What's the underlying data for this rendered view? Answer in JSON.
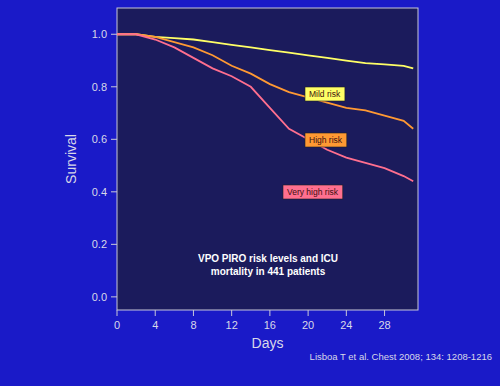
{
  "chart_data": {
    "type": "line",
    "y_label": "Survival",
    "x_label": "Days",
    "annotation": [
      "VPO PIRO risk levels and ICU",
      "mortality in 441 patients"
    ],
    "source": "Lisboa T et al. Chest 2008; 134: 1208-1216",
    "x": [
      0,
      2,
      4,
      6,
      8,
      10,
      12,
      14,
      16,
      18,
      20,
      22,
      24,
      26,
      28,
      30,
      31
    ],
    "series": [
      {
        "name": "Mild risk",
        "color": "#ffff66",
        "values": [
          1,
          1,
          0.99,
          0.985,
          0.98,
          0.97,
          0.96,
          0.95,
          0.94,
          0.93,
          0.92,
          0.91,
          0.9,
          0.89,
          0.885,
          0.88,
          0.87
        ]
      },
      {
        "name": "High risk",
        "color": "#ff9933",
        "values": [
          1,
          1,
          0.99,
          0.97,
          0.95,
          0.92,
          0.88,
          0.85,
          0.81,
          0.78,
          0.76,
          0.74,
          0.72,
          0.71,
          0.69,
          0.67,
          0.64
        ]
      },
      {
        "name": "Very high risk",
        "color": "#ff6f8f",
        "values": [
          1,
          1,
          0.98,
          0.95,
          0.91,
          0.87,
          0.84,
          0.8,
          0.72,
          0.64,
          0.6,
          0.56,
          0.53,
          0.51,
          0.49,
          0.46,
          0.44
        ]
      }
    ],
    "xlim": [
      0,
      31.5
    ],
    "ylim": [
      -0.05,
      1.1
    ],
    "xticks": [
      0,
      4,
      8,
      12,
      16,
      20,
      24,
      28
    ],
    "yticks": [
      {
        "value": 0,
        "label": "0.0"
      },
      0.2,
      0.4,
      0.6,
      0.8,
      {
        "value": 1,
        "label": "1.0"
      }
    ],
    "line_style": "solid",
    "grid": false
  }
}
